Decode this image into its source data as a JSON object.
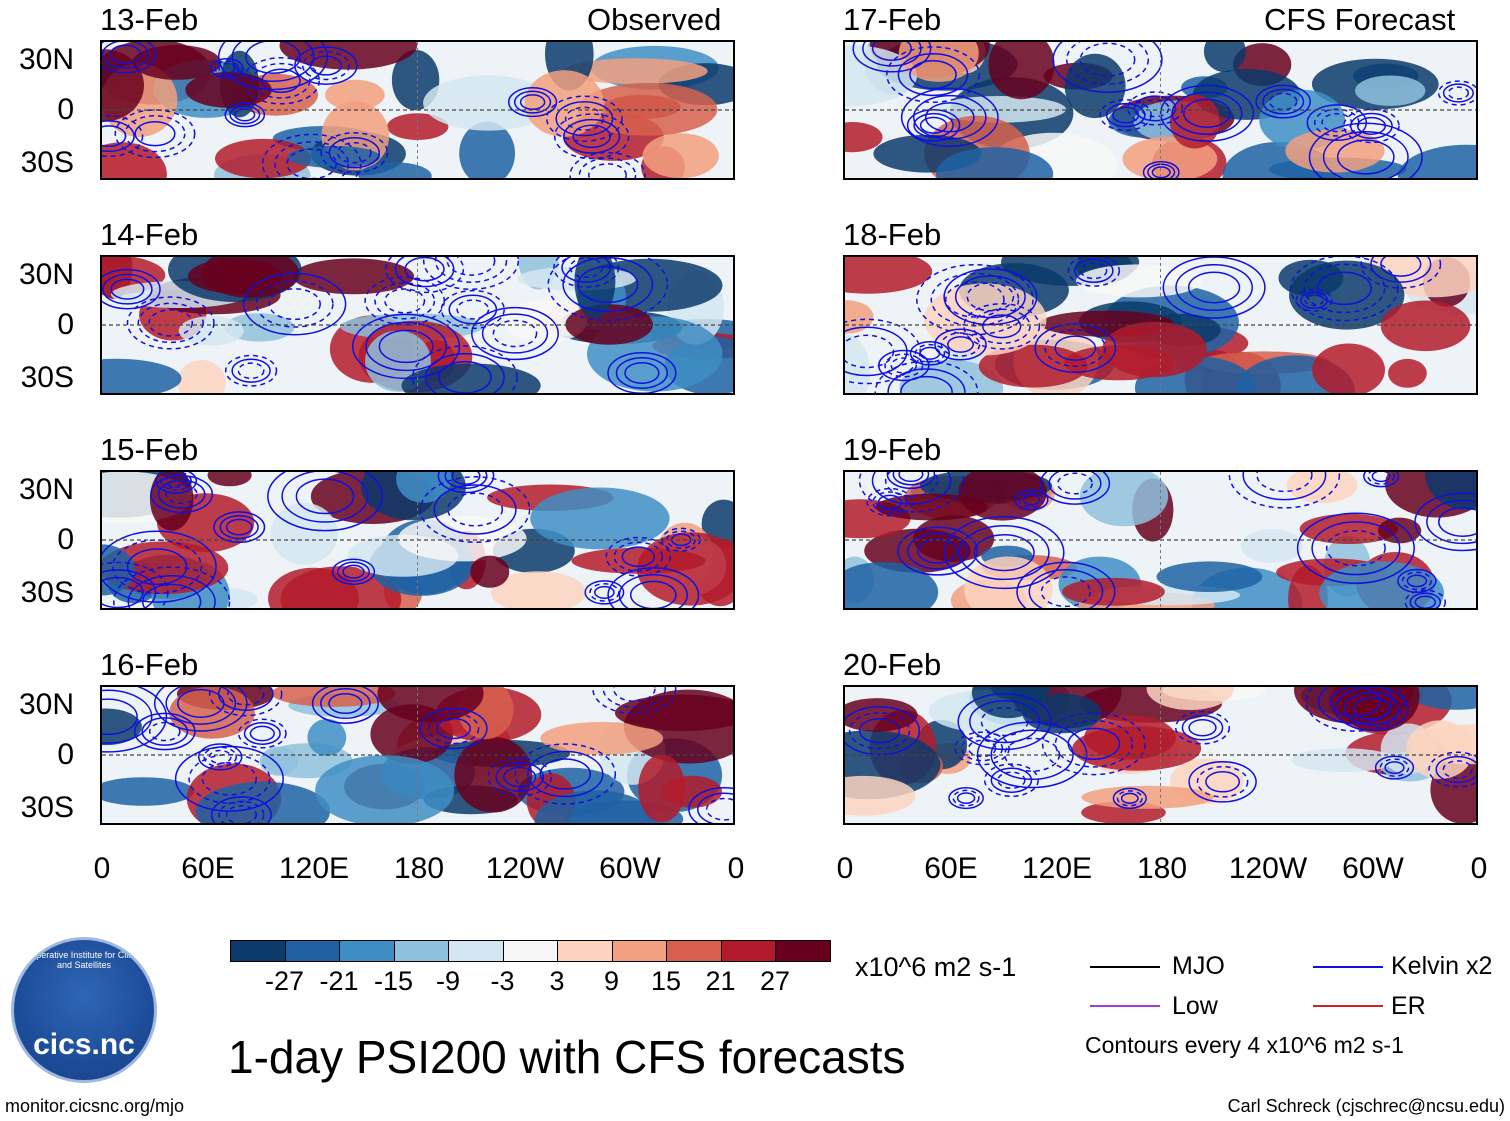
{
  "panels": [
    {
      "date": "13-Feb",
      "label": "Observed"
    },
    {
      "date": "14-Feb",
      "label": ""
    },
    {
      "date": "15-Feb",
      "label": ""
    },
    {
      "date": "16-Feb",
      "label": ""
    },
    {
      "date": "17-Feb",
      "label": "CFS Forecast"
    },
    {
      "date": "18-Feb",
      "label": ""
    },
    {
      "date": "19-Feb",
      "label": ""
    },
    {
      "date": "20-Feb",
      "label": ""
    }
  ],
  "chart_data": {
    "type": "heatmap",
    "title": "1-day PSI200 with CFS forecasts",
    "variable": "PSI200 anomaly",
    "y_ticks": [
      "30N",
      "0",
      "30S"
    ],
    "x_ticks": [
      "0",
      "60E",
      "120E",
      "180",
      "120W",
      "60W",
      "0"
    ],
    "colorbar": {
      "units": "x10^6 m2 s-1",
      "labels": [
        "-27",
        "-21",
        "-15",
        "-9",
        "-3",
        "3",
        "9",
        "15",
        "21",
        "27"
      ],
      "colors": [
        "#0b3a6b",
        "#1f61a3",
        "#3e8ec4",
        "#8fc1dd",
        "#d3e6f1",
        "#f7f7f7",
        "#fbd3bf",
        "#f2a07f",
        "#d6604d",
        "#b31b2c",
        "#67001f"
      ]
    },
    "legend": [
      {
        "name": "MJO",
        "color": "#000000"
      },
      {
        "name": "Kelvin x2",
        "color": "#1010e0"
      },
      {
        "name": "Low",
        "color": "#a040d0"
      },
      {
        "name": "ER",
        "color": "#d02020"
      }
    ],
    "contour_note": "Contours every 4 x10^6 m2 s-1"
  },
  "footer": {
    "left": "monitor.cicsnc.org/mjo",
    "right": "Carl Schreck (cjschrec@ncsu.edu)"
  },
  "logo": {
    "text": "cics.nc",
    "ring": "Cooperative Institute for Climate and Satellites"
  }
}
